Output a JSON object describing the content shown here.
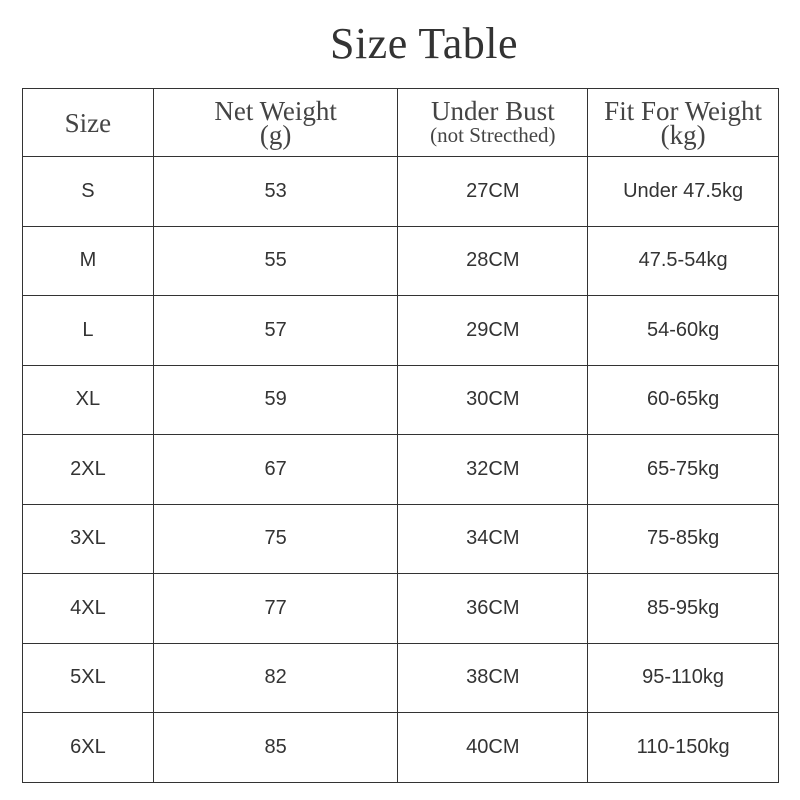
{
  "title": "Size Table",
  "headers": [
    {
      "main": "Size",
      "sub": ""
    },
    {
      "main": "Net Weight",
      "sub": "(g)"
    },
    {
      "main": "Under Bust",
      "sub": "(not Strecthed)"
    },
    {
      "main": "Fit For Weight",
      "sub": "(kg)"
    }
  ],
  "rows": [
    [
      "S",
      "53",
      "27CM",
      "Under 47.5kg"
    ],
    [
      "M",
      "55",
      "28CM",
      "47.5-54kg"
    ],
    [
      "L",
      "57",
      "29CM",
      "54-60kg"
    ],
    [
      "XL",
      "59",
      "30CM",
      "60-65kg"
    ],
    [
      "2XL",
      "67",
      "32CM",
      "65-75kg"
    ],
    [
      "3XL",
      "75",
      "34CM",
      "75-85kg"
    ],
    [
      "4XL",
      "77",
      "36CM",
      "85-95kg"
    ],
    [
      "5XL",
      "82",
      "38CM",
      "95-110kg"
    ],
    [
      "6XL",
      "85",
      "40CM",
      "110-150kg"
    ]
  ]
}
